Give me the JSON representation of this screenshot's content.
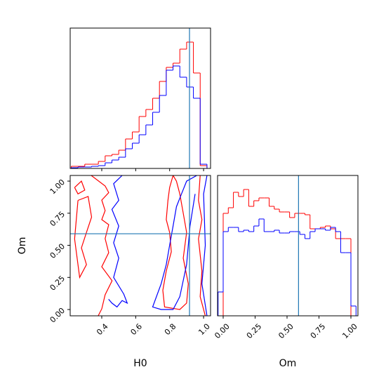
{
  "chart_data": [
    {
      "type": "histogram",
      "bins": [
        0.22,
        0.26,
        0.3,
        0.34,
        0.38,
        0.42,
        0.46,
        0.5,
        0.54,
        0.58,
        0.62,
        0.66,
        0.7,
        0.74,
        0.78,
        0.82,
        0.86,
        0.9,
        0.94,
        0.98,
        1.02
      ],
      "series": [
        {
          "color": "#ff0000",
          "values": [
            0.015,
            0.015,
            0.03,
            0.03,
            0.05,
            0.09,
            0.1,
            0.13,
            0.21,
            0.26,
            0.37,
            0.42,
            0.5,
            0.62,
            0.72,
            0.75,
            0.85,
            0.9,
            0.68,
            0.02
          ]
        },
        {
          "color": "#0000ff",
          "values": [
            0.005,
            0.01,
            0.01,
            0.015,
            0.02,
            0.04,
            0.06,
            0.08,
            0.14,
            0.18,
            0.24,
            0.31,
            0.4,
            0.52,
            0.7,
            0.73,
            0.65,
            0.58,
            0.5,
            0.03
          ]
        }
      ],
      "xlim": [
        0.214,
        1.041
      ],
      "ylim": [
        0,
        1
      ],
      "truth_x": 0.917,
      "truth_color": "#1f77b4"
    },
    {
      "type": "contour",
      "xlabel": "H0",
      "ylabel": "Om",
      "xlim": [
        0.214,
        1.041
      ],
      "ylim": [
        -0.049,
        1.044
      ],
      "xticks": [
        0.4,
        0.6,
        0.8,
        {
          "value": 1,
          "label": "1.0"
        }
      ],
      "yticks": [
        {
          "value": 0,
          "label": "0.00"
        },
        0.25,
        {
          "value": 0.5,
          "label": "0.50"
        },
        0.75,
        {
          "value": 1,
          "label": "1.00"
        }
      ],
      "series": [
        {
          "color": "#ff0000",
          "lines": [
            {
              "x": [
                0.338,
                0.42,
                0.441,
                0.4,
                0.42,
                0.4,
                0.441,
                0.42,
                0.441,
                0.4,
                0.461,
                0.42,
                0.4,
                0.379
              ],
              "y": [
                1.044,
                0.962,
                0.91,
                0.852,
                0.77,
                0.7,
                0.661,
                0.552,
                0.443,
                0.333,
                0.224,
                0.115,
                0.005,
                -0.049
              ]
            },
            {
              "x": [
                0.26,
                0.32,
                0.34,
                0.31,
                0.28,
                0.31,
                0.27,
                0.24,
                0.26
              ],
              "y": [
                0.85,
                0.88,
                0.72,
                0.6,
                0.48,
                0.35,
                0.25,
                0.55,
                0.85
              ]
            },
            {
              "x": [
                0.24,
                0.28,
                0.3,
                0.26,
                0.24
              ],
              "y": [
                0.95,
                1.0,
                0.93,
                0.9,
                0.95
              ]
            },
            {
              "x": [
                0.82,
                0.8,
                0.79,
                0.78,
                0.8,
                0.81,
                0.78,
                0.76,
                0.77,
                0.86,
                0.9,
                0.91,
                0.88,
                0.9,
                0.88,
                0.86,
                0.84,
                0.82
              ],
              "y": [
                1.044,
                0.95,
                0.85,
                0.7,
                0.6,
                0.45,
                0.3,
                0.15,
                0.02,
                0.0,
                0.05,
                0.2,
                0.4,
                0.6,
                0.75,
                0.9,
                1.0,
                1.044
              ]
            },
            {
              "x": [
                0.98,
                0.97,
                0.99,
                0.97,
                0.99,
                0.98,
                1.01
              ],
              "y": [
                1.044,
                0.85,
                0.7,
                0.55,
                0.3,
                0.1,
                -0.049
              ]
            }
          ]
        },
        {
          "color": "#0000ff",
          "lines": [
            {
              "x": [
                0.52,
                0.47,
                0.5,
                0.46,
                0.5,
                0.47,
                0.5,
                0.47,
                0.53,
                0.55,
                0.52,
                0.49,
                0.46,
                0.44
              ],
              "y": [
                1.044,
                0.98,
                0.85,
                0.78,
                0.65,
                0.52,
                0.4,
                0.25,
                0.12,
                0.05,
                0.07,
                0.02,
                0.05,
                0.08
              ]
            },
            {
              "x": [
                0.96,
                0.9,
                0.87,
                0.84,
                0.82,
                0.8,
                0.78,
                0.75,
                0.7,
                0.75,
                0.82,
                0.86,
                0.9,
                0.92,
                0.95
              ],
              "y": [
                1.044,
                1.0,
                0.9,
                0.8,
                0.65,
                0.5,
                0.35,
                0.2,
                0.02,
                0.0,
                0.0,
                0.1,
                0.35,
                0.65,
                0.9
              ]
            },
            {
              "x": [
                1.02,
                1.0,
                1.01,
                0.99,
                1.02
              ],
              "y": [
                1.044,
                0.9,
                0.5,
                0.2,
                -0.049
              ]
            }
          ]
        }
      ],
      "truth_x": 0.917,
      "truth_y": 0.59,
      "truth_color": "#1f77b4"
    },
    {
      "type": "histogram",
      "xlabel": "Om",
      "bins": [
        -0.04,
        0.0,
        0.04,
        0.08,
        0.12,
        0.16,
        0.2,
        0.24,
        0.28,
        0.32,
        0.36,
        0.4,
        0.44,
        0.48,
        0.52,
        0.56,
        0.6,
        0.64,
        0.68,
        0.72,
        0.76,
        0.8,
        0.84,
        0.88,
        0.92,
        0.96,
        1.0,
        1.04
      ],
      "series": [
        {
          "color": "#ff0000",
          "values": [
            0,
            0.73,
            0.77,
            0.88,
            0.85,
            0.9,
            0.78,
            0.82,
            0.84,
            0.84,
            0.78,
            0.76,
            0.74,
            0.74,
            0.7,
            0.73,
            0.73,
            0.72,
            0.62,
            0.62,
            0.63,
            0.64,
            0.62,
            0.55,
            0.55,
            0.55,
            0
          ]
        },
        {
          "color": "#0000ff",
          "values": [
            0.17,
            0.6,
            0.63,
            0.63,
            0.6,
            0.61,
            0.6,
            0.64,
            0.69,
            0.6,
            0.6,
            0.61,
            0.59,
            0.59,
            0.6,
            0.6,
            0.58,
            0.55,
            0.6,
            0.62,
            0.62,
            0.61,
            0.63,
            0.6,
            0.45,
            0.45,
            0.07
          ]
        }
      ],
      "xlim": [
        -0.044,
        1.055
      ],
      "ylim": [
        0,
        1
      ],
      "xticks": [
        {
          "value": 0,
          "label": "0.00"
        },
        0.25,
        {
          "value": 0.5,
          "label": "0.50"
        },
        0.75,
        {
          "value": 1,
          "label": "1.00"
        }
      ],
      "truth_x": 0.59,
      "truth_color": "#1f77b4"
    }
  ]
}
